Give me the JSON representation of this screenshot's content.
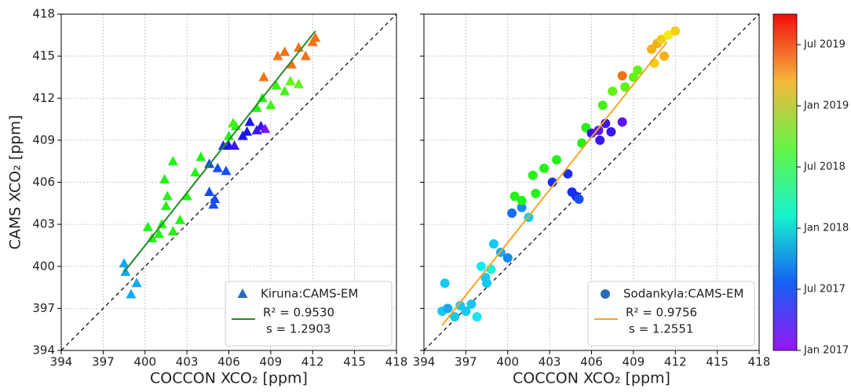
{
  "chart_data": [
    {
      "type": "scatter",
      "marker": "triangle",
      "x_label": "COCCON XCO₂ [ppm]",
      "y_label": "CAMS XCO₂ [ppm]",
      "xlim": [
        394,
        418
      ],
      "ylim": [
        394,
        418
      ],
      "xticks": [
        394,
        397,
        400,
        403,
        406,
        409,
        412,
        415,
        418
      ],
      "yticks": [
        394,
        397,
        400,
        403,
        406,
        409,
        412,
        415,
        418
      ],
      "grid": true,
      "legend": "lower right",
      "clim": [
        0,
        33
      ],
      "show_ytick_labels": true,
      "series": [
        {
          "name": "Kiruna:CAMS-EM",
          "color": "#2b6cb8",
          "x": [
            398.5,
            398.6,
            399,
            399.4,
            400.2,
            400.5,
            401,
            401.2,
            401.5,
            401.6,
            401.4,
            402,
            402.5,
            402,
            403,
            403.6,
            404,
            404.6,
            404.6,
            404.9,
            405,
            405.2,
            405.6,
            405.8,
            406,
            406.4,
            406,
            406.5,
            407,
            407.3,
            407.5,
            408,
            408.3,
            408,
            408.4,
            409,
            409.4,
            410,
            410.4,
            411,
            408.5,
            409.5,
            410,
            410.5,
            411,
            411.5,
            412,
            412.2,
            406.3,
            408.6
          ],
          "values": [
            400.2,
            399.6,
            398,
            398.8,
            402.8,
            402,
            402.3,
            403,
            404.3,
            405,
            406.2,
            402.5,
            403.3,
            407.5,
            405,
            406.7,
            407.8,
            407.3,
            405.3,
            404.4,
            404.8,
            407,
            408.6,
            406.8,
            408.6,
            408.6,
            409.3,
            410,
            409.3,
            409.6,
            410.3,
            409.7,
            410,
            411.3,
            412,
            411.5,
            412.9,
            412.5,
            413.2,
            413,
            413.5,
            415,
            415.3,
            414.4,
            415.6,
            415,
            416,
            416.3,
            410.2,
            409.8
          ],
          "c": [
            9,
            9,
            9,
            9,
            19,
            19,
            19,
            19,
            19,
            19,
            19,
            19,
            19,
            19,
            19,
            19,
            19,
            6,
            6,
            6,
            6,
            6,
            5,
            6,
            4,
            3,
            19,
            19,
            4,
            4,
            4,
            3,
            3,
            19,
            19,
            20,
            20,
            20,
            21,
            21,
            30,
            30,
            30,
            30,
            30,
            30,
            30,
            30,
            20,
            1
          ]
        }
      ],
      "fit": {
        "color": "#228b22",
        "x": [
          398.5,
          412.2
        ],
        "y": [
          399.6,
          416.8
        ],
        "r2_label": "R² = 0.9530",
        "s_label": "s = 1.2903"
      }
    },
    {
      "type": "scatter",
      "marker": "circle",
      "x_label": "COCCON XCO₂ [ppm]",
      "xlim": [
        394,
        418
      ],
      "ylim": [
        394,
        418
      ],
      "xticks": [
        394,
        397,
        400,
        403,
        406,
        409,
        412,
        415,
        418
      ],
      "yticks": [
        394,
        397,
        400,
        403,
        406,
        409,
        412,
        415,
        418
      ],
      "grid": true,
      "legend": "lower right",
      "clim": [
        0,
        33
      ],
      "show_ytick_labels": false,
      "series": [
        {
          "name": "Sodankyla:CAMS-EM",
          "color": "#2b6cb8",
          "x": [
            395.3,
            395.5,
            395.7,
            396.2,
            396.6,
            397,
            397.4,
            397.8,
            398.1,
            398.5,
            398.8,
            398.4,
            399,
            399.5,
            400,
            400.3,
            401,
            401.5,
            400.5,
            401,
            401.8,
            402,
            402.6,
            403.5,
            404.3,
            404.6,
            404.9,
            405.1,
            405.3,
            405.6,
            406,
            406.5,
            407,
            407.4,
            408.2,
            406.8,
            407.5,
            408.4,
            409,
            409.3,
            408.2,
            410.3,
            410.7,
            411,
            411.5,
            412,
            410.5,
            411.2,
            403.2,
            406.6
          ],
          "values": [
            396.8,
            398.8,
            397,
            396.4,
            397.2,
            396.8,
            397.3,
            396.4,
            400,
            398.8,
            399.8,
            399.2,
            401.6,
            401,
            400.6,
            403.8,
            404.2,
            403.5,
            405,
            404.7,
            406.5,
            405.2,
            407,
            407.6,
            406.6,
            405.3,
            405,
            404.8,
            408.8,
            409.9,
            409.5,
            409.7,
            410.2,
            409.6,
            410.3,
            411.5,
            412.5,
            412.8,
            413.5,
            414,
            413.6,
            415.5,
            415.9,
            416.2,
            416.5,
            416.8,
            414.5,
            415,
            406,
            409
          ],
          "c": [
            10,
            10,
            9,
            10,
            10,
            10,
            10,
            11,
            11,
            10,
            12,
            10,
            10,
            9,
            8,
            7,
            8,
            10,
            19,
            19,
            19,
            19,
            19,
            19,
            5,
            5,
            5,
            6,
            19,
            19,
            3,
            2,
            3,
            3,
            2,
            20,
            21,
            21,
            21,
            21,
            30,
            28,
            28,
            27,
            26,
            27,
            27,
            28,
            5,
            3
          ]
        }
      ],
      "fit": {
        "color": "#f5a623",
        "x": [
          395.3,
          411.4
        ],
        "y": [
          395.8,
          416
        ],
        "r2_label": "R² = 0.9756",
        "s_label": "s = 1.2551"
      },
      "colorbar": {
        "lim": [
          0,
          33
        ],
        "ticks": [
          {
            "value": 0,
            "label": "Jan 2017"
          },
          {
            "value": 6,
            "label": "Jul 2017"
          },
          {
            "value": 12,
            "label": "Jan 2018"
          },
          {
            "value": 18,
            "label": "Jul 2018"
          },
          {
            "value": 24,
            "label": "Jan 2019"
          },
          {
            "value": 30,
            "label": "Jul 2019"
          }
        ]
      }
    }
  ]
}
